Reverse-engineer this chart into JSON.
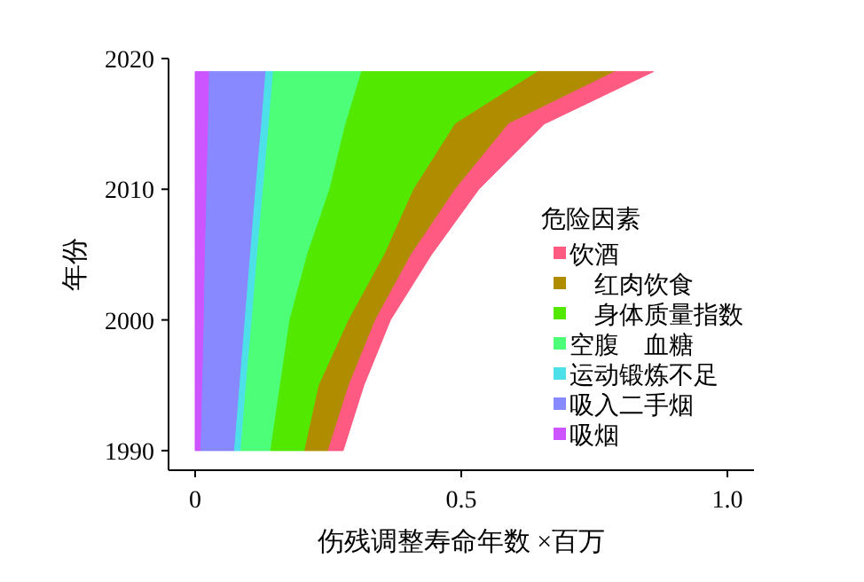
{
  "chart_data": {
    "type": "area",
    "stacked": true,
    "orientation": "horizontal",
    "xlabel": "伤残调整寿命年数 ×百万",
    "ylabel": "年份",
    "legend_title": "危险因素",
    "legend": "right",
    "x": [
      1990,
      1995,
      2000,
      2005,
      2010,
      2015,
      2019
    ],
    "xlim": [
      -0.05,
      1.05
    ],
    "xticks": [
      0,
      0.5,
      {
        "value": 1,
        "label": "1.0"
      }
    ],
    "ylim": [
      1988.5,
      2020
    ],
    "yticks": [
      1990,
      2000,
      2010,
      2020
    ],
    "grid": false,
    "series": [
      {
        "name": "吸烟",
        "color": "#cc55ff",
        "values": [
          0.011,
          0.014,
          0.017,
          0.019,
          0.022,
          0.025,
          0.027
        ]
      },
      {
        "name": "吸入二手烟",
        "color": "#8888ff",
        "values": [
          0.063,
          0.07,
          0.077,
          0.085,
          0.092,
          0.1,
          0.106
        ]
      },
      {
        "name": "运动锻炼不足",
        "color": "#4de0e8",
        "values": [
          0.012,
          0.012,
          0.013,
          0.013,
          0.014,
          0.014,
          0.014
        ]
      },
      {
        "name": "空腹　血糖",
        "color": "#4dff78",
        "values": [
          0.056,
          0.064,
          0.071,
          0.094,
          0.125,
          0.144,
          0.166
        ]
      },
      {
        "name": "　身体质量指数",
        "color": "#52e800",
        "values": [
          0.064,
          0.073,
          0.111,
          0.145,
          0.158,
          0.206,
          0.331
        ]
      },
      {
        "name": "　红肉饮食",
        "color": "#b08c00",
        "values": [
          0.044,
          0.056,
          0.05,
          0.05,
          0.078,
          0.1,
          0.145
        ]
      },
      {
        "name": "饮酒",
        "color": "#ff5a82",
        "values": [
          0.028,
          0.028,
          0.028,
          0.038,
          0.044,
          0.067,
          0.072
        ]
      }
    ]
  }
}
